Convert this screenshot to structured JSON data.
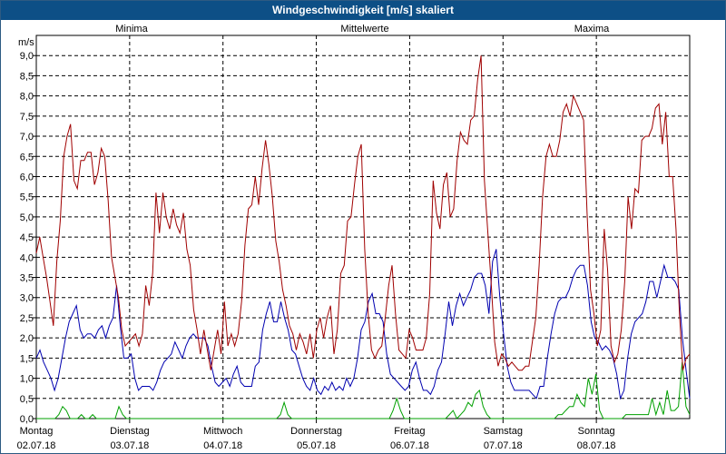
{
  "chart_data": {
    "type": "line",
    "title": "Windgeschwindigkeit [m/s] skaliert",
    "ylabel": "m/s",
    "ylim": [
      0,
      9.5
    ],
    "yticks": [
      "0,0",
      "0,5",
      "1,0",
      "1,5",
      "2,0",
      "2,5",
      "3,0",
      "3,5",
      "4,0",
      "4,5",
      "5,0",
      "5,5",
      "6,0",
      "6,5",
      "7,0",
      "7,5",
      "8,0",
      "8,5",
      "9,0"
    ],
    "x_hours_range": [
      0,
      168
    ],
    "days": [
      {
        "name": "Montag",
        "date": "02.07.18"
      },
      {
        "name": "Dienstag",
        "date": "03.07.18"
      },
      {
        "name": "Mittwoch",
        "date": "04.07.18"
      },
      {
        "name": "Donnerstag",
        "date": "05.07.18"
      },
      {
        "name": "Freitag",
        "date": "06.07.18"
      },
      {
        "name": "Samstag",
        "date": "07.07.18"
      },
      {
        "name": "Sonntag",
        "date": "08.07.18"
      }
    ],
    "series": [
      {
        "name": "Minima",
        "color": "#00a000",
        "values": [
          0,
          0,
          0,
          0,
          0,
          0,
          0.1,
          0.3,
          0.2,
          0,
          0,
          0,
          0.1,
          0,
          0,
          0.1,
          0,
          0,
          0,
          0,
          0,
          0,
          0.3,
          0.1,
          0,
          0,
          0,
          0,
          0,
          0,
          0,
          0,
          0,
          0,
          0,
          0,
          0,
          0,
          0,
          0,
          0,
          0,
          0,
          0,
          0,
          0,
          0,
          0,
          0,
          0,
          0,
          0,
          0,
          0,
          0,
          0,
          0,
          0,
          0,
          0,
          0,
          0,
          0,
          0,
          0,
          0.1,
          0.4,
          0.1,
          0,
          0,
          0,
          0,
          0,
          0,
          0,
          0,
          0,
          0,
          0,
          0,
          0,
          0,
          0,
          0,
          0,
          0,
          0,
          0,
          0,
          0,
          0,
          0,
          0,
          0,
          0,
          0.2,
          0.5,
          0.2,
          0,
          0,
          0,
          0,
          0,
          0,
          0,
          0,
          0,
          0,
          0,
          0,
          0.1,
          0.2,
          0,
          0.1,
          0.2,
          0.4,
          0.3,
          0.6,
          0.7,
          0.3,
          0.1,
          0,
          0,
          0,
          0,
          0,
          0,
          0,
          0,
          0,
          0,
          0,
          0,
          0,
          0,
          0,
          0,
          0,
          0,
          0.1,
          0.1,
          0.2,
          0.3,
          0.3,
          0.6,
          0.4,
          0.3,
          1,
          0.6,
          1.1,
          0.2,
          0,
          0,
          0,
          0,
          0,
          0,
          0.1,
          0.1,
          0.1,
          0.1,
          0.1,
          0.1,
          0.1,
          0.5,
          0.1,
          0.4,
          0.1,
          0.7,
          0.2,
          0.2,
          0.3,
          1.4,
          0.3,
          0.1
        ]
      },
      {
        "name": "Mittelwerte",
        "color": "#0000b0",
        "values": [
          1.5,
          1.7,
          1.4,
          1.2,
          1,
          0.7,
          1,
          1.5,
          2,
          2.4,
          2.6,
          2.8,
          2.2,
          2,
          2.1,
          2.1,
          2,
          2.2,
          2.3,
          2,
          2.3,
          2.5,
          3.3,
          2.3,
          1.5,
          1.5,
          1.6,
          1,
          0.7,
          0.8,
          0.8,
          0.8,
          0.7,
          0.9,
          1.2,
          1.4,
          1.5,
          1.6,
          1.9,
          1.7,
          1.5,
          1.8,
          2,
          2.1,
          2,
          2,
          2,
          1.8,
          1.3,
          0.9,
          0.8,
          0.9,
          1,
          0.8,
          1.1,
          1.3,
          0.9,
          0.8,
          0.8,
          0.8,
          1.3,
          1.4,
          2.2,
          2.6,
          2.9,
          2.4,
          2.4,
          2.9,
          2.5,
          2.2,
          1.7,
          1.6,
          1.3,
          1,
          0.8,
          0.7,
          1,
          0.7,
          0.6,
          0.8,
          0.7,
          0.9,
          0.7,
          0.8,
          0.7,
          1,
          0.8,
          1,
          1.5,
          2.2,
          2.4,
          2.9,
          3.1,
          2.6,
          2.6,
          2.4,
          1.6,
          1.1,
          1,
          0.9,
          0.8,
          0.7,
          0.8,
          1.2,
          1.4,
          1,
          0.7,
          0.7,
          0.6,
          0.8,
          1.2,
          1.4,
          2.1,
          2.9,
          2.3,
          2.8,
          3.1,
          2.8,
          3,
          3.2,
          3.5,
          3.6,
          3.6,
          3.3,
          2.6,
          3.9,
          4.2,
          3,
          2.1,
          1.3,
          0.9,
          0.7,
          0.7,
          0.7,
          0.7,
          0.7,
          0.6,
          0.5,
          0.8,
          0.8,
          1.5,
          2.1,
          2.6,
          2.9,
          3,
          3,
          3.2,
          3.5,
          3.7,
          3.8,
          3.8,
          3.3,
          2.4,
          2,
          1.9,
          1.7,
          1.8,
          1.7,
          1.5,
          1.1,
          0.5,
          0.7,
          1.5,
          2.1,
          2.4,
          2.5,
          2.6,
          2.9,
          3.4,
          3.4,
          3,
          3.4,
          3.8,
          3.5,
          3.5,
          3.4,
          3.2,
          2,
          1.2,
          0.5
        ]
      },
      {
        "name": "Maxima",
        "color": "#a00000",
        "values": [
          4.1,
          4.5,
          4,
          3.5,
          2.9,
          2.3,
          3.9,
          4.9,
          6.5,
          7,
          7.3,
          5.9,
          5.7,
          6.4,
          6.4,
          6.6,
          6.6,
          5.8,
          6.1,
          6.7,
          6.5,
          5.4,
          4,
          3.5,
          3,
          2.2,
          1.8,
          1.9,
          2,
          2.1,
          1.8,
          2.1,
          3.3,
          2.8,
          3.6,
          5.6,
          4.6,
          5.6,
          5,
          4.7,
          5.2,
          4.8,
          4.6,
          5.1,
          4.2,
          3.8,
          2.7,
          2.2,
          1.6,
          2.2,
          1.7,
          1.2,
          1.7,
          2.2,
          1.6,
          2.9,
          1.8,
          2.1,
          1.8,
          2.1,
          2.9,
          4.3,
          5.2,
          5.3,
          6,
          5.3,
          6.2,
          6.9,
          6.3,
          5.5,
          4.4,
          3.9,
          3.2,
          2.8,
          2.3,
          2.1,
          1.7,
          2.1,
          1.9,
          1.6,
          2.1,
          1.5,
          2.2,
          2.5,
          2,
          2.5,
          2.8,
          1.6,
          2.2,
          3.6,
          3.8,
          4.9,
          5,
          5.8,
          6.5,
          6.8,
          4.2,
          2.6,
          1.7,
          1.5,
          1.7,
          1.8,
          2.5,
          3.3,
          3.8,
          2.6,
          1.7,
          1.6,
          1.5,
          2.2,
          2,
          1.7,
          1.7,
          1.7,
          2,
          3.1,
          5.9,
          5.1,
          4.7,
          5.8,
          6.1,
          5,
          5.2,
          6.4,
          7.1,
          6.9,
          6.8,
          7.4,
          7.5,
          8.4,
          9,
          5.9,
          4.6,
          3.3,
          1.9,
          1.3,
          1.6,
          1.5,
          1.3,
          1.4,
          1.3,
          1.2,
          1.2,
          1.3,
          1.3,
          1.9,
          2.5,
          3.8,
          5.5,
          6.5,
          6.8,
          6.5,
          6.5,
          6.9,
          7.6,
          7.8,
          7.5,
          8,
          7.8,
          7.6,
          7.4,
          5.1,
          3.2,
          2.6,
          1.8,
          2.2,
          4.7,
          3.7,
          1.8,
          1.4,
          1.6,
          2.2,
          3.4,
          5.5,
          4.7,
          5.7,
          5.6,
          6.9,
          7,
          7,
          7.2,
          7.7,
          7.8,
          6.8,
          7.6,
          6,
          6,
          4.7,
          2.6,
          1.2,
          1.5,
          1.6
        ]
      }
    ]
  }
}
